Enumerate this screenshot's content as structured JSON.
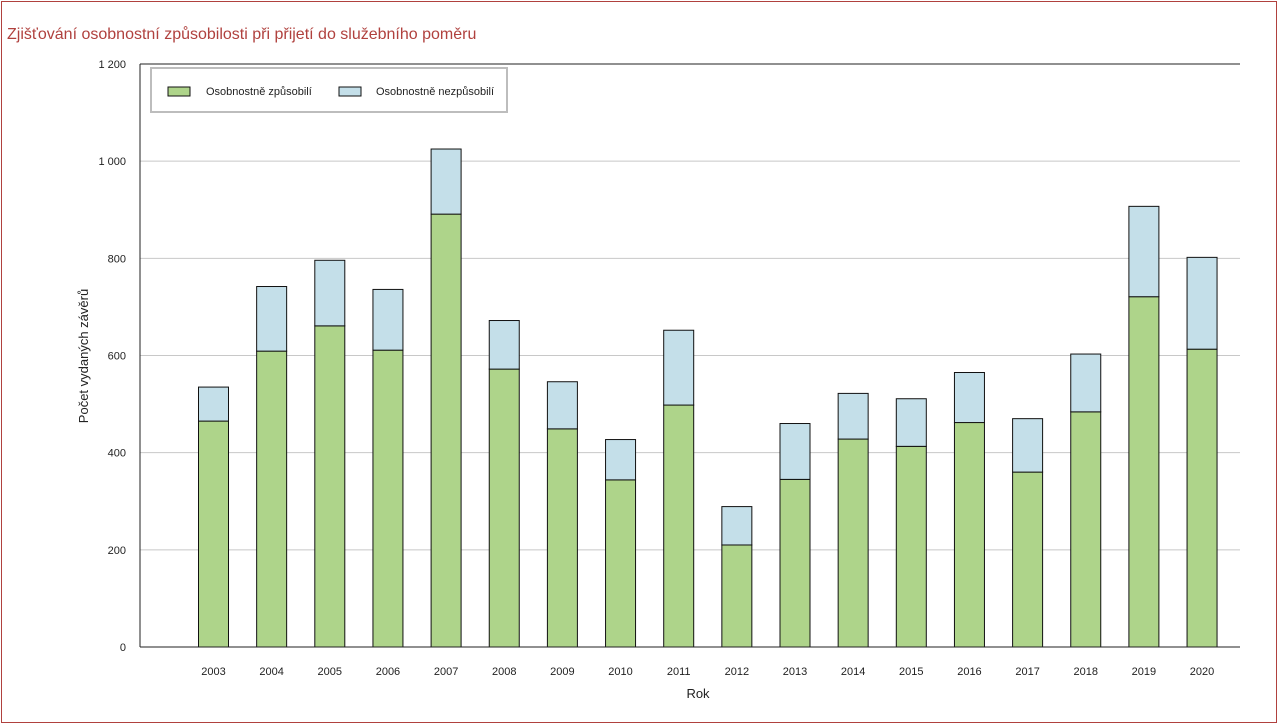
{
  "colors": {
    "frame": "#b0413e",
    "title": "#b0413e",
    "fit": "#aed48a",
    "unfit": "#c4dfe9",
    "bar_stroke": "#111111",
    "grid": "#c8c8c8"
  },
  "chart_data": {
    "type": "bar",
    "stacked": true,
    "title": "Zjišťování osobnostní způsobilosti při přijetí do služebního poměru",
    "xlabel": "Rok",
    "ylabel": "Počet vydaných závěrů",
    "ylim": [
      0,
      1200
    ],
    "yticks": [
      0,
      200,
      400,
      600,
      800,
      1000,
      1200
    ],
    "ytick_labels": [
      "0",
      "200",
      "400",
      "600",
      "800",
      "1 000",
      "1 200"
    ],
    "grid": true,
    "legend_position": "top-left",
    "categories": [
      "2003",
      "2004",
      "2005",
      "2006",
      "2007",
      "2008",
      "2009",
      "2010",
      "2011",
      "2012",
      "2013",
      "2014",
      "2015",
      "2016",
      "2017",
      "2018",
      "2019",
      "2020"
    ],
    "series": [
      {
        "name": "Osobnostně způsobilí",
        "values": [
          465,
          609,
          661,
          611,
          891,
          572,
          449,
          344,
          498,
          210,
          345,
          428,
          413,
          462,
          360,
          484,
          721,
          613
        ]
      },
      {
        "name": "Osobnostně nezpůsobilí",
        "values": [
          70,
          133,
          135,
          125,
          134,
          100,
          97,
          83,
          154,
          79,
          115,
          94,
          98,
          103,
          110,
          119,
          186,
          189
        ]
      }
    ]
  }
}
